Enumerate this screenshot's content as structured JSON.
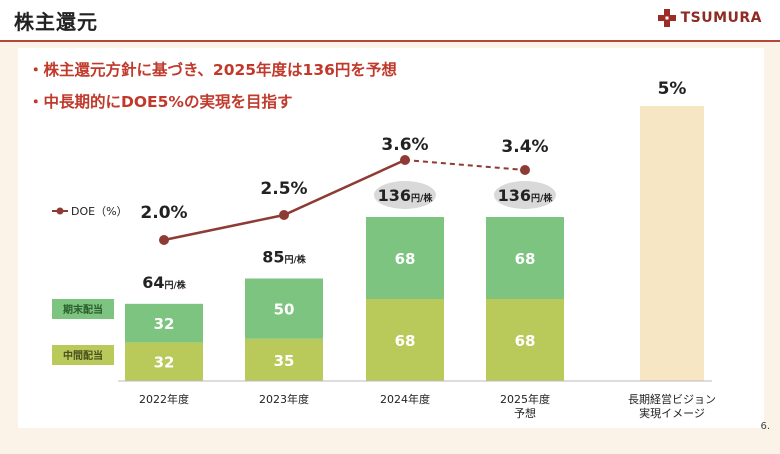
{
  "header": {
    "title": "株主還元",
    "logo_text": "TSUMURA"
  },
  "bullets": [
    "・株主還元方針に基づき、2025年度は136円を予想",
    "・中長期的にDOE5%の実現を目指す"
  ],
  "page_number": "6.",
  "chart_data": {
    "type": "bar",
    "categories": [
      "2022年度",
      "2023年度",
      "2024年度",
      "2025年度\n予想",
      "長期経営ビジョン\n実現イメージ"
    ],
    "category_lines": [
      [
        "2022年度"
      ],
      [
        "2023年度"
      ],
      [
        "2024年度"
      ],
      [
        "2025年度",
        "予想"
      ],
      [
        "長期経営ビジョン",
        "実現イメージ"
      ]
    ],
    "series": [
      {
        "name": "中間配当",
        "values": [
          32,
          35,
          68,
          68,
          null
        ],
        "color": "#b9c95a"
      },
      {
        "name": "期末配当",
        "values": [
          32,
          50,
          68,
          68,
          null
        ],
        "color": "#7cc47f"
      }
    ],
    "totals": [
      64,
      85,
      136,
      136,
      null
    ],
    "total_labels": [
      {
        "num": "64",
        "unit": "円/株"
      },
      {
        "num": "85",
        "unit": "円/株"
      },
      {
        "num": "136",
        "unit": "円/株"
      },
      {
        "num": "136",
        "unit": "円/株"
      }
    ],
    "doe": {
      "name": "DOE（%）",
      "values": [
        2.0,
        2.5,
        3.6,
        3.4,
        5.0
      ],
      "labels": [
        "2.0%",
        "2.5%",
        "3.6%",
        "3.4%",
        "5%"
      ],
      "color": "#8e3b34"
    },
    "vision_bar": {
      "value": 5,
      "color": "#f7e6c4"
    },
    "ylim": [
      0,
      140
    ],
    "title": "",
    "xlabel": "",
    "ylabel": ""
  }
}
